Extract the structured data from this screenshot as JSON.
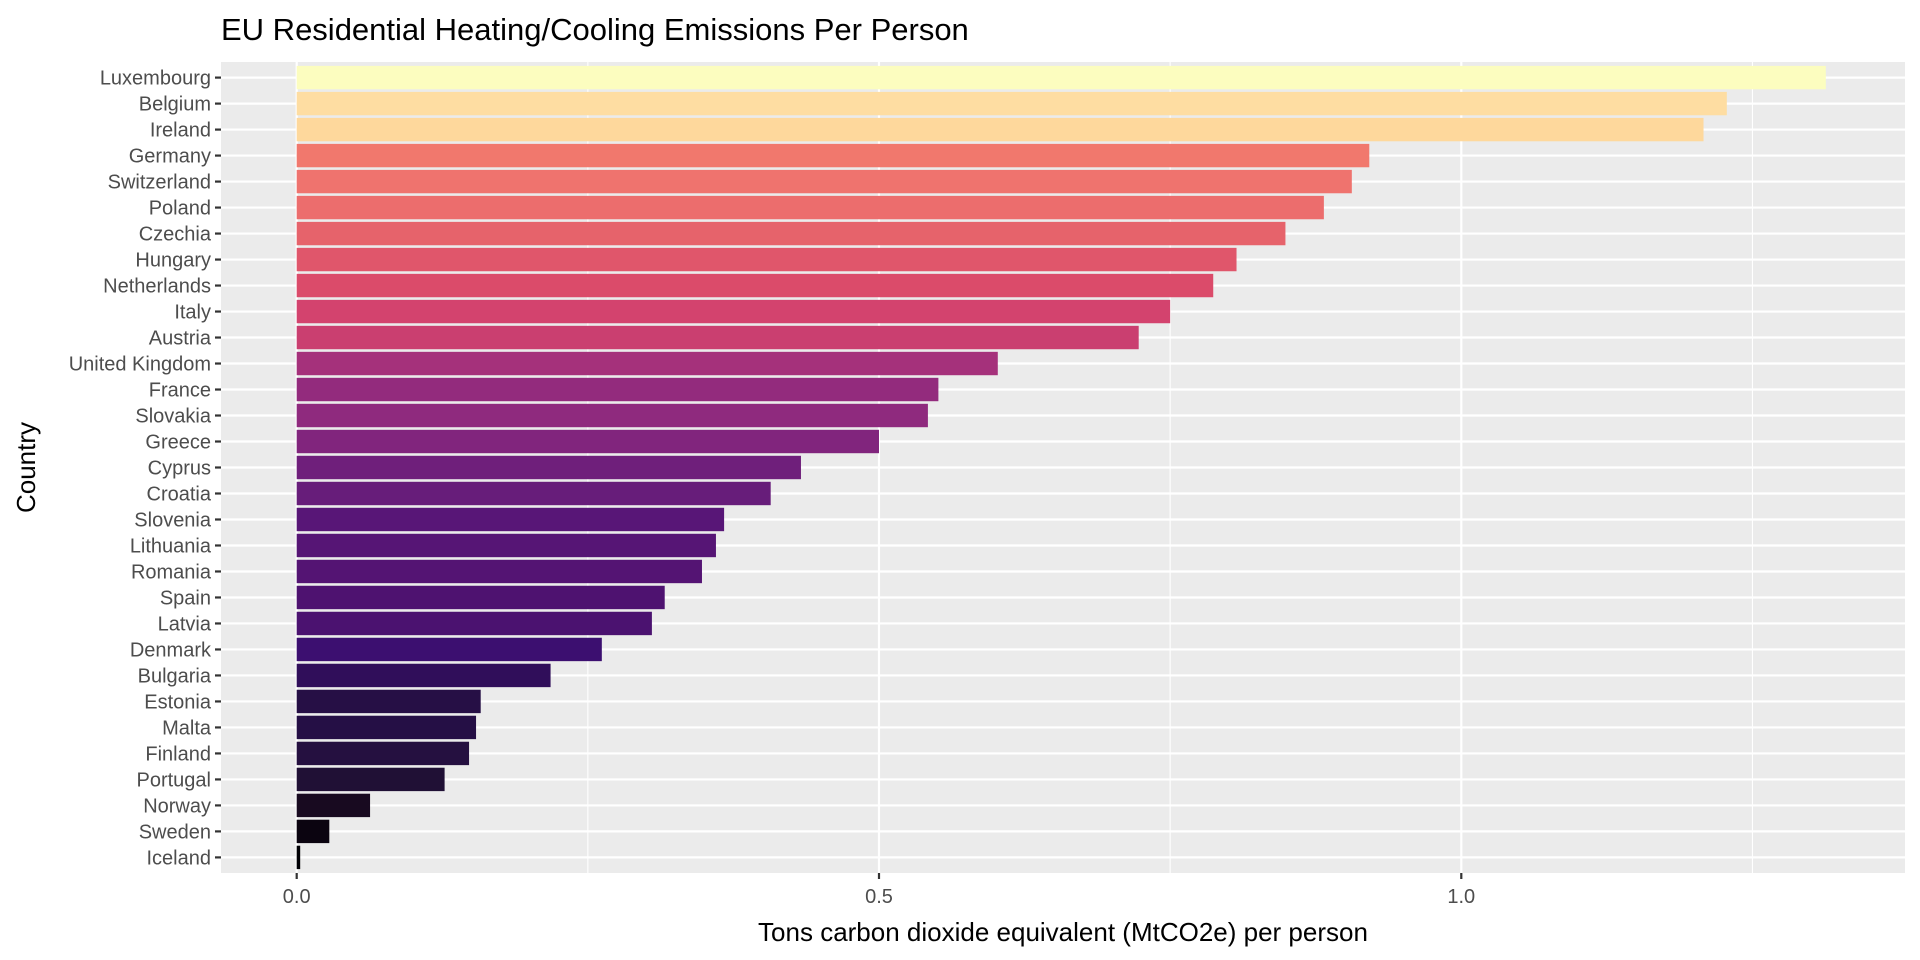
{
  "chart_data": {
    "type": "bar",
    "orientation": "horizontal",
    "title": "EU Residential Heating/Cooling Emissions Per Person",
    "xlabel": "Tons carbon dioxide equivalent (MtCO2e) per person",
    "ylabel": "Country",
    "xlim": [
      -0.065,
      1.381
    ],
    "xticks": [
      0.0,
      0.5,
      1.0
    ],
    "xtick_labels": [
      "0.0",
      "0.5",
      "1.0"
    ],
    "minor_gridlines": [
      0.25,
      0.75,
      1.25
    ],
    "grid": true,
    "legend": "none",
    "color_scale": "magma (by value)",
    "categories": [
      "Luxembourg",
      "Belgium",
      "Ireland",
      "Germany",
      "Switzerland",
      "Poland",
      "Czechia",
      "Hungary",
      "Netherlands",
      "Italy",
      "Austria",
      "United Kingdom",
      "France",
      "Slovakia",
      "Greece",
      "Cyprus",
      "Croatia",
      "Slovenia",
      "Lithuania",
      "Romania",
      "Spain",
      "Latvia",
      "Denmark",
      "Bulgaria",
      "Estonia",
      "Malta",
      "Finland",
      "Portugal",
      "Norway",
      "Sweden",
      "Iceland"
    ],
    "values": [
      1.313,
      1.228,
      1.208,
      0.921,
      0.906,
      0.882,
      0.849,
      0.807,
      0.787,
      0.75,
      0.723,
      0.602,
      0.551,
      0.542,
      0.5,
      0.433,
      0.407,
      0.367,
      0.36,
      0.348,
      0.316,
      0.305,
      0.262,
      0.218,
      0.158,
      0.154,
      0.148,
      0.127,
      0.063,
      0.028,
      0.003
    ],
    "colors": [
      "#fcfdbf",
      "#fedda2",
      "#fed89c",
      "#f1786d",
      "#ef736e",
      "#ec6d6d",
      "#e6636b",
      "#e0566b",
      "#db4b6a",
      "#d3436e",
      "#ca3f70",
      "#a5317b",
      "#932b7d",
      "#8f2a7e",
      "#81257d",
      "#6f1f7b",
      "#671d7a",
      "#581677",
      "#561575",
      "#541473",
      "#4e1270",
      "#4b1270",
      "#3c0f70",
      "#300e5a",
      "#260f45",
      "#250f45",
      "#251040",
      "#201035",
      "#180a20",
      "#0b0410",
      "#000004"
    ]
  }
}
